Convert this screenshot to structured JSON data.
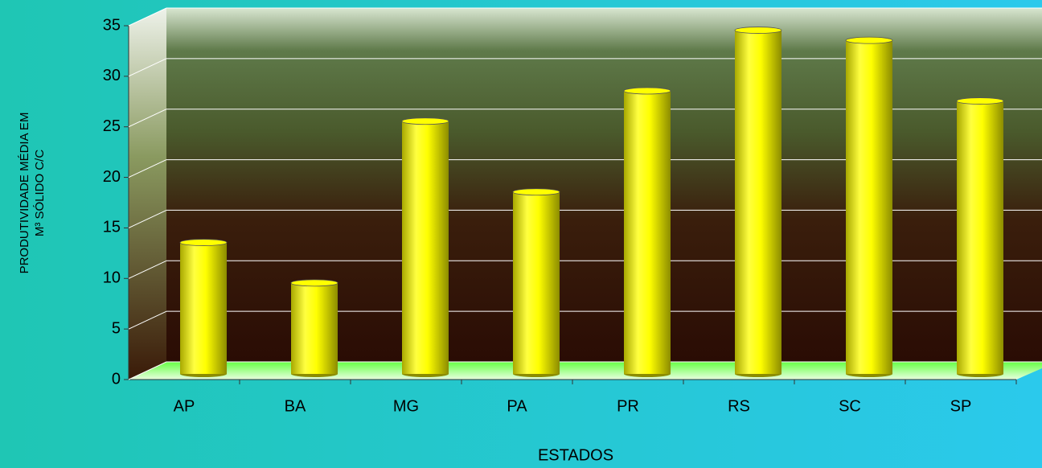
{
  "chart_data": {
    "type": "bar",
    "categories": [
      "AP",
      "BA",
      "MG",
      "PA",
      "PR",
      "RS",
      "SC",
      "SP"
    ],
    "values": [
      13,
      9,
      25,
      18,
      28,
      34,
      33,
      27
    ],
    "color": "#ffff00",
    "ylim": [
      0,
      35
    ],
    "yticks": [
      0,
      5,
      10,
      15,
      20,
      25,
      30,
      35
    ],
    "grid": true,
    "y_label": "PRODUTIVIDADE MÉDIA EM M³ SÓLIDO C/C",
    "x_label": "ESTADOS"
  }
}
